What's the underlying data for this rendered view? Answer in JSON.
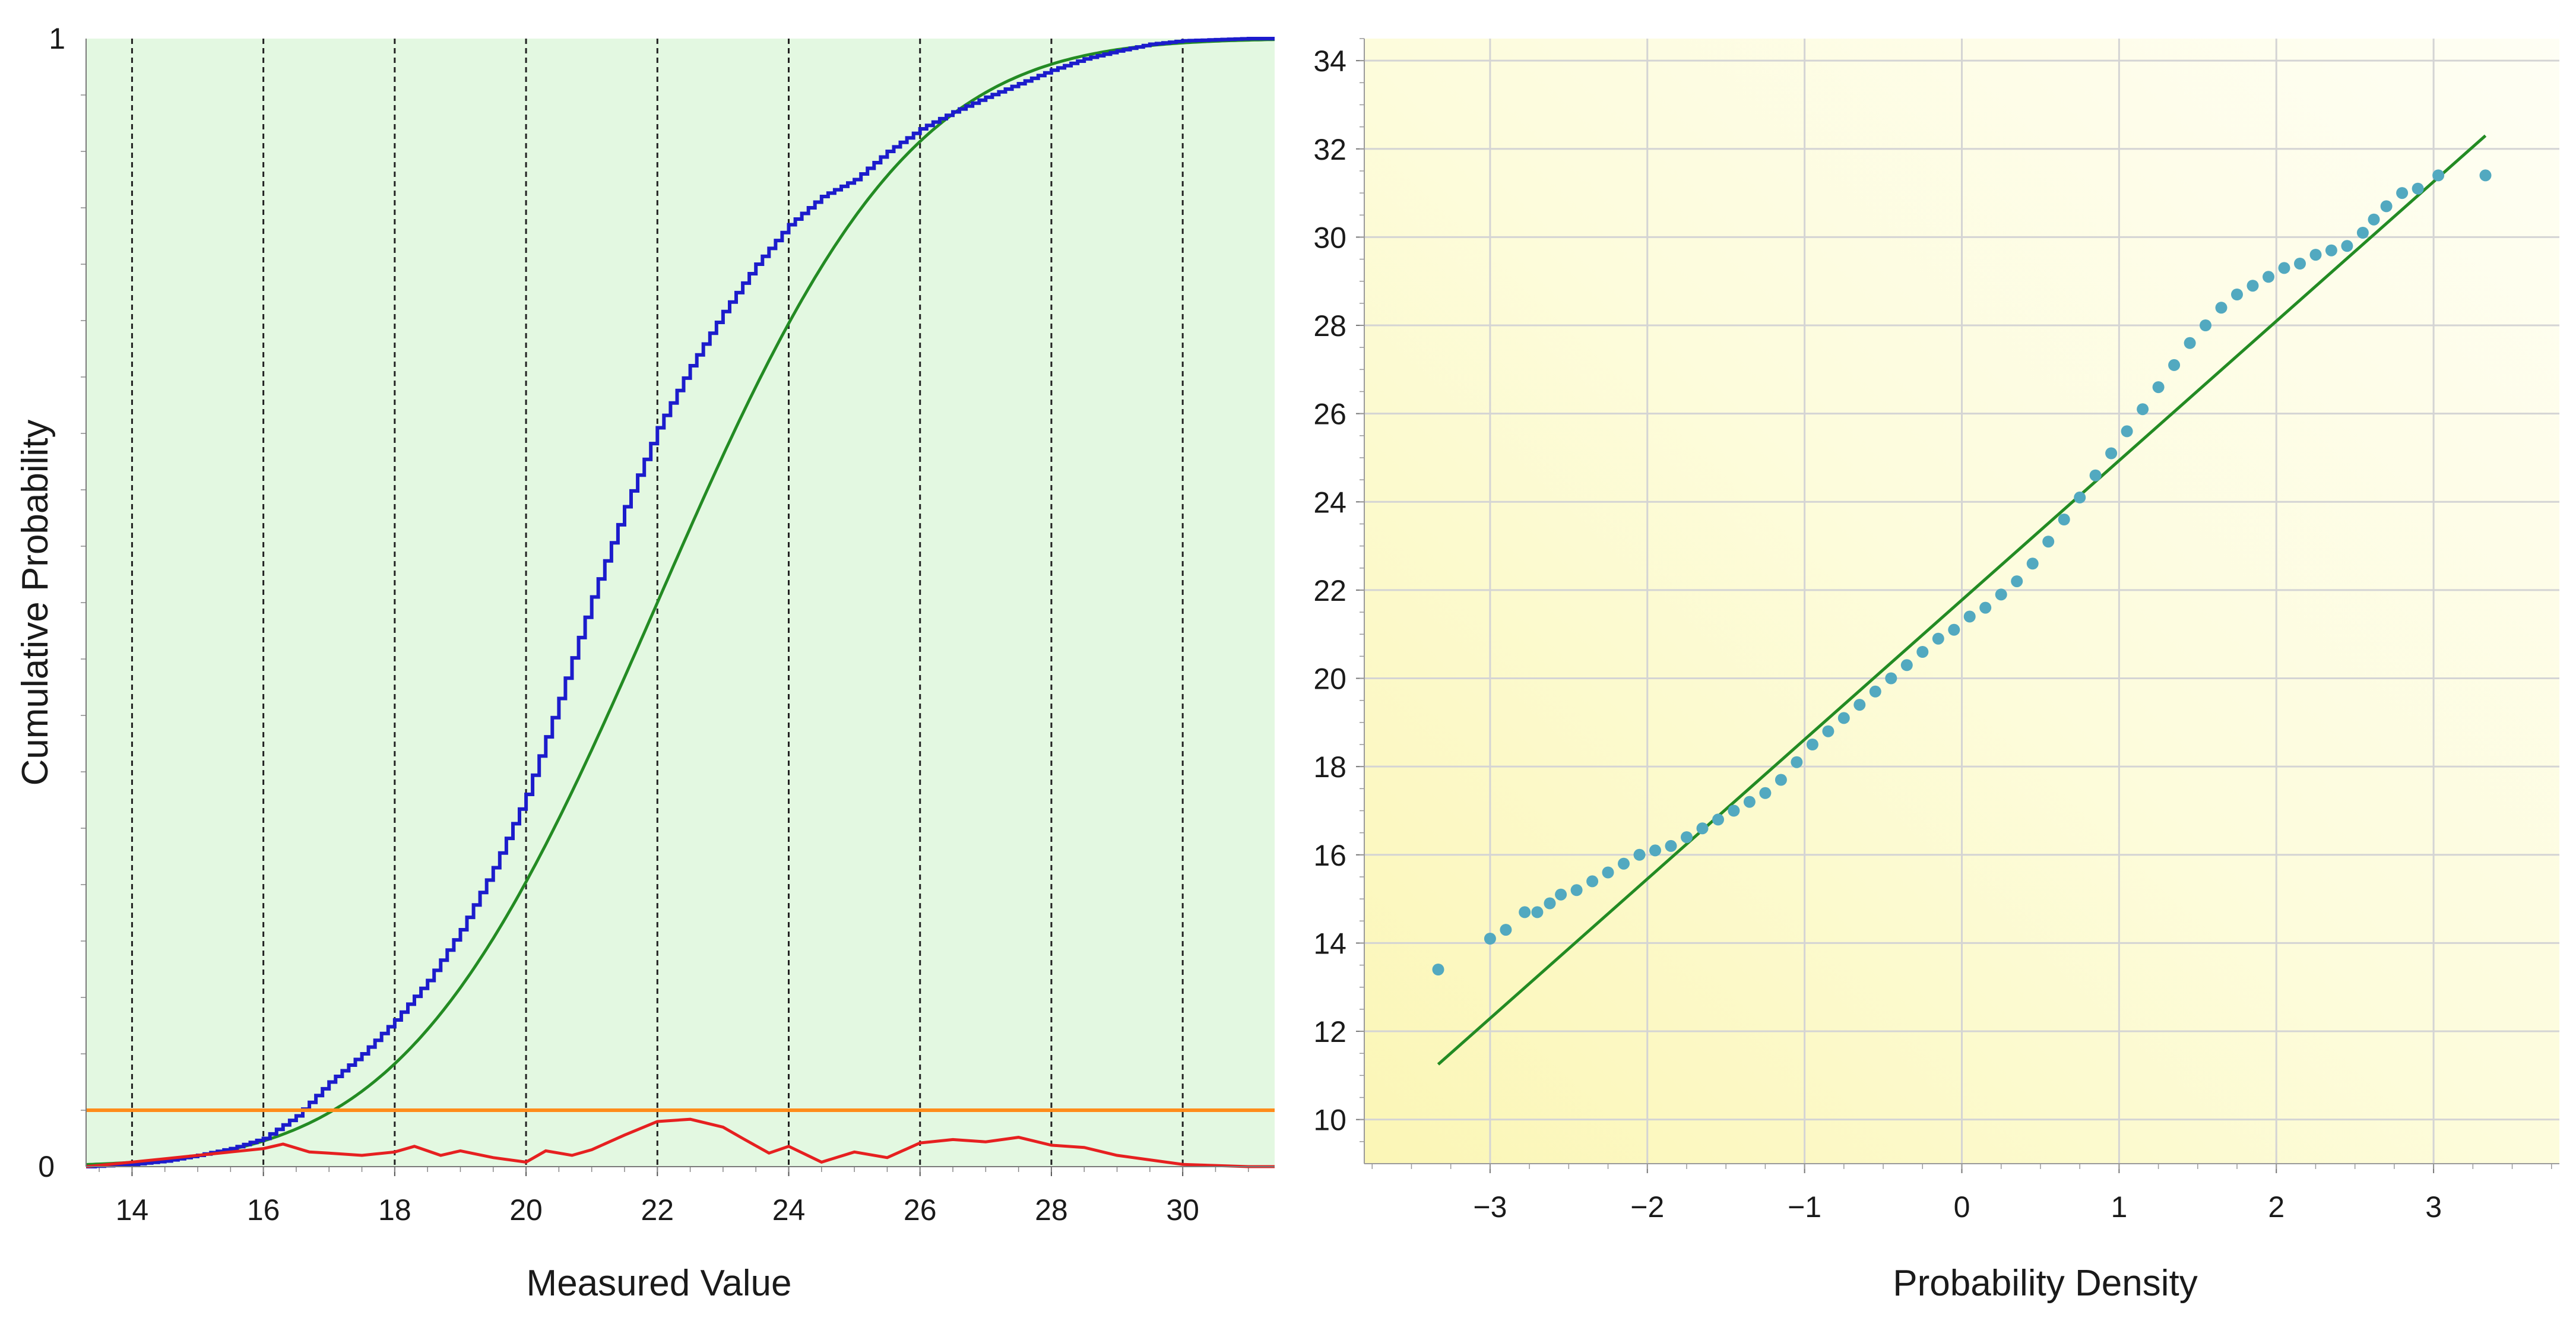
{
  "chart_data": [
    {
      "type": "line",
      "xlabel": "Measured Value",
      "ylabel": "Cumulative Probability",
      "xlim": [
        13.3,
        31.4
      ],
      "ylim": [
        0,
        1
      ],
      "x_ticks": [
        "14",
        "16",
        "18",
        "20",
        "22",
        "24",
        "26",
        "28",
        "30"
      ],
      "y_ticks": [
        "0",
        "1"
      ],
      "grid": "vertical dashed lines at x ticks",
      "background_color": "#e3f8e1",
      "series": [
        {
          "kind": "empirical-cdf-step",
          "color": "#1c1ccc",
          "x": [
            13.3,
            14.0,
            14.5,
            15.0,
            15.5,
            16.0,
            16.5,
            17.0,
            17.5,
            18.0,
            18.5,
            19.0,
            19.5,
            20.0,
            20.5,
            21.0,
            21.5,
            22.0,
            22.5,
            23.0,
            23.5,
            24.0,
            24.5,
            25.0,
            25.5,
            26.0,
            26.5,
            27.0,
            27.5,
            28.0,
            28.5,
            29.0,
            29.5,
            30.0,
            30.5,
            31.0,
            31.4
          ],
          "y": [
            0.0,
            0.002,
            0.005,
            0.01,
            0.016,
            0.025,
            0.045,
            0.075,
            0.1,
            0.13,
            0.165,
            0.21,
            0.265,
            0.33,
            0.415,
            0.505,
            0.585,
            0.655,
            0.71,
            0.758,
            0.8,
            0.835,
            0.86,
            0.875,
            0.9,
            0.92,
            0.935,
            0.948,
            0.96,
            0.972,
            0.982,
            0.989,
            0.995,
            0.998,
            0.999,
            1.0,
            1.0
          ]
        },
        {
          "kind": "fitted-normal-cdf",
          "color": "#238b23",
          "mean": 22.0,
          "sd": 3.0
        },
        {
          "kind": "absolute-difference",
          "color": "#e62020",
          "x": [
            13.3,
            14.0,
            14.5,
            15.0,
            15.5,
            16.0,
            16.3,
            16.7,
            17.0,
            17.5,
            18.0,
            18.3,
            18.7,
            19.0,
            19.5,
            20.0,
            20.3,
            20.7,
            21.0,
            21.5,
            22.0,
            22.5,
            23.0,
            23.3,
            23.7,
            24.0,
            24.5,
            25.0,
            25.5,
            26.0,
            26.5,
            27.0,
            27.5,
            28.0,
            28.5,
            29.0,
            29.5,
            30.0,
            30.5,
            31.0,
            31.4
          ],
          "y": [
            0.0,
            0.004,
            0.007,
            0.01,
            0.013,
            0.016,
            0.02,
            0.013,
            0.012,
            0.01,
            0.013,
            0.018,
            0.01,
            0.014,
            0.008,
            0.004,
            0.014,
            0.01,
            0.015,
            0.028,
            0.04,
            0.042,
            0.035,
            0.025,
            0.012,
            0.018,
            0.004,
            0.013,
            0.008,
            0.021,
            0.024,
            0.022,
            0.026,
            0.019,
            0.017,
            0.01,
            0.006,
            0.002,
            0.001,
            0.0,
            0.0
          ]
        },
        {
          "kind": "critical-value",
          "color": "#ff8c1a",
          "value": 0.05
        }
      ]
    },
    {
      "type": "scatter",
      "xlabel": "Probability Density",
      "xlim": [
        -3.8,
        3.8
      ],
      "ylim": [
        9,
        34.5
      ],
      "x_ticks": [
        "−3",
        "−2",
        "−1",
        "0",
        "1",
        "2",
        "3"
      ],
      "y_ticks": [
        "10",
        "12",
        "14",
        "16",
        "18",
        "20",
        "22",
        "24",
        "26",
        "28",
        "30",
        "32",
        "34"
      ],
      "grid": "on",
      "background_color": "#fdfbd6",
      "points_color": "#52a9c0",
      "points": [
        [
          -3.33,
          13.4
        ],
        [
          -3.0,
          14.1
        ],
        [
          -2.9,
          14.3
        ],
        [
          -2.78,
          14.7
        ],
        [
          -2.7,
          14.7
        ],
        [
          -2.62,
          14.9
        ],
        [
          -2.55,
          15.1
        ],
        [
          -2.45,
          15.2
        ],
        [
          -2.35,
          15.4
        ],
        [
          -2.25,
          15.6
        ],
        [
          -2.15,
          15.8
        ],
        [
          -2.05,
          16.0
        ],
        [
          -1.95,
          16.1
        ],
        [
          -1.85,
          16.2
        ],
        [
          -1.75,
          16.4
        ],
        [
          -1.65,
          16.6
        ],
        [
          -1.55,
          16.8
        ],
        [
          -1.45,
          17.0
        ],
        [
          -1.35,
          17.2
        ],
        [
          -1.25,
          17.4
        ],
        [
          -1.15,
          17.7
        ],
        [
          -1.05,
          18.1
        ],
        [
          -0.95,
          18.5
        ],
        [
          -0.85,
          18.8
        ],
        [
          -0.75,
          19.1
        ],
        [
          -0.65,
          19.4
        ],
        [
          -0.55,
          19.7
        ],
        [
          -0.45,
          20.0
        ],
        [
          -0.35,
          20.3
        ],
        [
          -0.25,
          20.6
        ],
        [
          -0.15,
          20.9
        ],
        [
          -0.05,
          21.1
        ],
        [
          0.05,
          21.4
        ],
        [
          0.15,
          21.6
        ],
        [
          0.25,
          21.9
        ],
        [
          0.35,
          22.2
        ],
        [
          0.45,
          22.6
        ],
        [
          0.55,
          23.1
        ],
        [
          0.65,
          23.6
        ],
        [
          0.75,
          24.1
        ],
        [
          0.85,
          24.6
        ],
        [
          0.95,
          25.1
        ],
        [
          1.05,
          25.6
        ],
        [
          1.15,
          26.1
        ],
        [
          1.25,
          26.6
        ],
        [
          1.35,
          27.1
        ],
        [
          1.45,
          27.6
        ],
        [
          1.55,
          28.0
        ],
        [
          1.65,
          28.4
        ],
        [
          1.75,
          28.7
        ],
        [
          1.85,
          28.9
        ],
        [
          1.95,
          29.1
        ],
        [
          2.05,
          29.3
        ],
        [
          2.15,
          29.4
        ],
        [
          2.25,
          29.6
        ],
        [
          2.35,
          29.7
        ],
        [
          2.45,
          29.8
        ],
        [
          2.55,
          30.1
        ],
        [
          2.62,
          30.4
        ],
        [
          2.7,
          30.7
        ],
        [
          2.8,
          31.0
        ],
        [
          2.9,
          31.1
        ],
        [
          3.03,
          31.4
        ],
        [
          3.33,
          31.4
        ]
      ],
      "reference_line": {
        "color": "#238b23",
        "x": [
          -3.33,
          3.33
        ],
        "y": [
          11.25,
          32.3
        ]
      }
    }
  ]
}
